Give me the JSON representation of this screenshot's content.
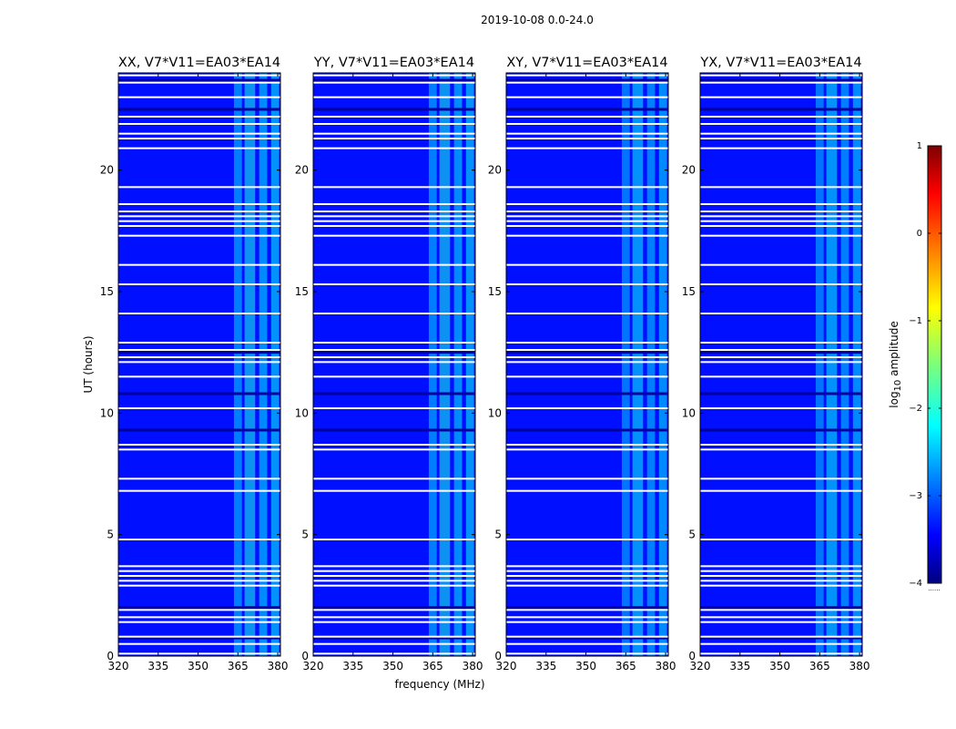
{
  "figure": {
    "suptitle": "2019-10-08 0.0-24.0",
    "ylabel": "UT (hours)",
    "xlabel": "frequency (MHz)"
  },
  "chart_data": {
    "type": "heatmap",
    "title": "2019-10-08 0.0-24.0",
    "xlabel": "frequency (MHz)",
    "ylabel": "UT (hours)",
    "xlim": [
      320,
      381
    ],
    "ylim": [
      0,
      24
    ],
    "xticks": [
      "320",
      "335",
      "350",
      "365",
      "380"
    ],
    "xtick_values": [
      320,
      335,
      350,
      365,
      380
    ],
    "yticks": [
      "0",
      "5",
      "10",
      "15",
      "20"
    ],
    "ytick_values": [
      0,
      5,
      10,
      15,
      20
    ],
    "panels": [
      {
        "title": "XX, V7*V11=EA03*EA14",
        "polarization": "XX"
      },
      {
        "title": "YY, V7*V11=EA03*EA14",
        "polarization": "YY"
      },
      {
        "title": "XY, V7*V11=EA03*EA14",
        "polarization": "XY"
      },
      {
        "title": "YX, V7*V11=EA03*EA14",
        "polarization": "YX"
      }
    ],
    "colorbar": {
      "label": "log10 amplitude",
      "label_main": "log",
      "label_sub": "10",
      "label_rest": " amplitude",
      "range": [
        -4,
        1
      ],
      "ticks": [
        "1",
        "0",
        "−1",
        "−2",
        "−3",
        "−4"
      ],
      "tick_values": [
        1,
        0,
        -1,
        -2,
        -3,
        -4
      ],
      "colormap": "jet",
      "under_label": "......"
    },
    "background_level": -3.3,
    "rfi_bands_mhz": [
      {
        "start": 363.5,
        "end": 366.5,
        "level": -2.3
      },
      {
        "start": 367.5,
        "end": 371.5,
        "level": -2.0
      },
      {
        "start": 373.0,
        "end": 376.0,
        "level": -2.2
      },
      {
        "start": 377.5,
        "end": 380.5,
        "level": -2.1
      }
    ],
    "flagged_rows_hours": [
      0.1,
      0.5,
      0.8,
      1.4,
      1.6,
      1.9,
      2.9,
      3.1,
      3.3,
      3.5,
      3.7,
      4.8,
      6.8,
      7.3,
      8.5,
      8.7,
      10.2,
      11.5,
      12.1,
      12.3,
      12.6,
      12.9,
      14.1,
      15.3,
      16.1,
      17.3,
      17.7,
      17.9,
      18.1,
      18.3,
      18.6,
      19.3,
      20.9,
      21.3,
      21.5,
      21.9,
      22.2,
      23.0,
      23.6,
      23.9
    ],
    "dark_rows_hours": [
      0.75,
      2.0,
      9.3,
      10.8,
      12.5,
      22.5,
      23.7
    ]
  }
}
